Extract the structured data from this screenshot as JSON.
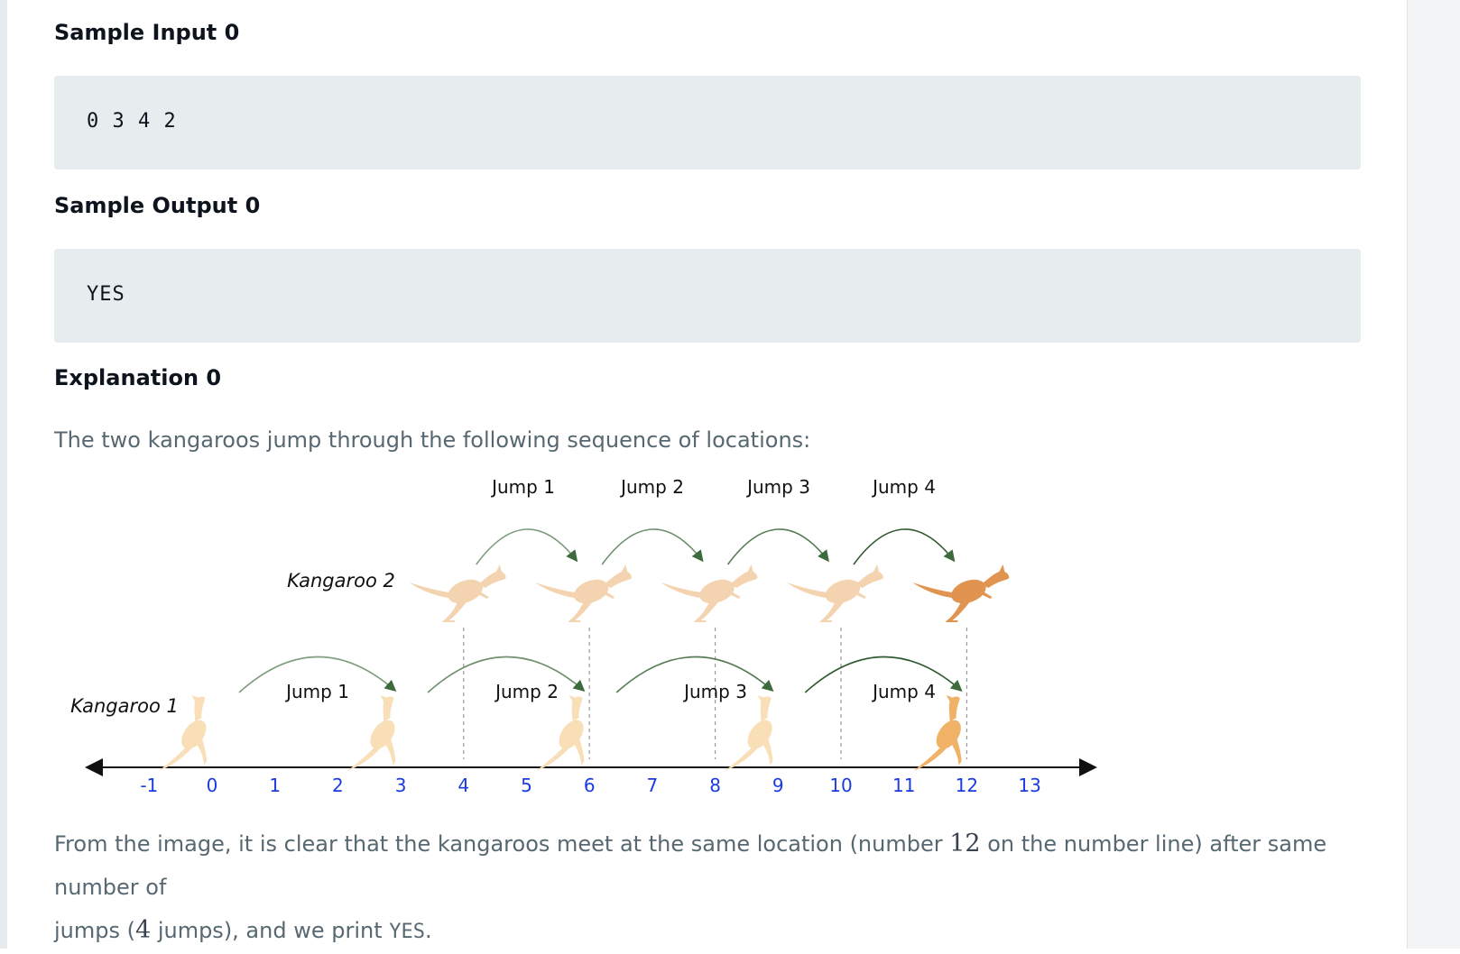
{
  "sample_input": {
    "heading": "Sample Input 0",
    "code": "0 3 4 2"
  },
  "sample_output": {
    "heading": "Sample Output 0",
    "code": "YES"
  },
  "explanation": {
    "heading": "Explanation 0",
    "intro": "The two kangaroos jump through the following sequence of locations:",
    "conclusion_part1": "From the image, it is clear that the kangaroos meet at the same location (number ",
    "conclusion_math1": "12",
    "conclusion_part2": " on the number line) after same number of",
    "conclusion_part3": "jumps (",
    "conclusion_math2": "4",
    "conclusion_part4": " jumps), and we print ",
    "conclusion_code": "YES",
    "conclusion_part5": "."
  },
  "figure": {
    "kangaroo1_label": "Kangaroo 1",
    "kangaroo2_label": "Kangaroo 2",
    "kangaroo2_jump_labels": [
      "Jump 1",
      "Jump 2",
      "Jump 3",
      "Jump 4"
    ],
    "kangaroo1_jump_labels": [
      "Jump 1",
      "Jump 2",
      "Jump 3",
      "Jump 4"
    ],
    "ticks": [
      "-1",
      "0",
      "1",
      "2",
      "3",
      "4",
      "5",
      "6",
      "7",
      "8",
      "9",
      "10",
      "11",
      "12",
      "13"
    ],
    "kangaroo1_positions": [
      0,
      3,
      6,
      9,
      12
    ],
    "kangaroo2_positions": [
      4,
      6,
      8,
      10,
      12
    ],
    "colors": {
      "tick_label": "#1a3be0",
      "arrow_green": "#3d6b3d",
      "kangaroo_light": "#f3d3b0",
      "kangaroo_dark": "#e0944f",
      "kangaroo1_light": "#f8dfb8",
      "kangaroo1_dark": "#efb266"
    }
  }
}
